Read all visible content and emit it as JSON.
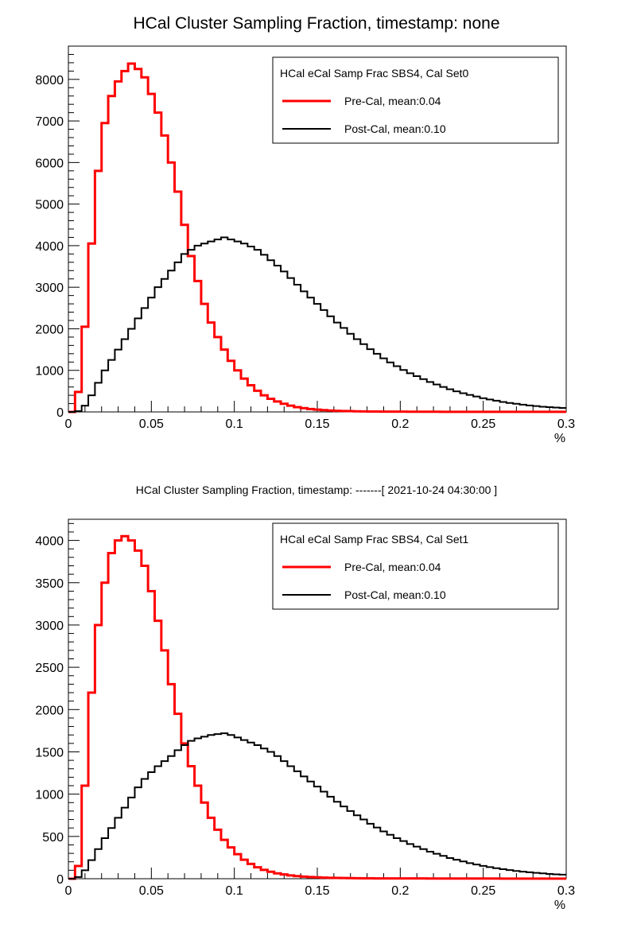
{
  "chart_data": [
    {
      "type": "histogram",
      "title": "HCal Cluster Sampling Fraction, timestamp: none",
      "xlabel": "%",
      "ylabel": "",
      "xlim": [
        0,
        0.3
      ],
      "ylim": [
        0,
        8800
      ],
      "x_ticks": [
        0,
        0.05,
        0.1,
        0.15,
        0.2,
        0.25,
        0.3
      ],
      "x_tick_labels": [
        "0",
        "0.05",
        "0.1",
        "0.15",
        "0.2",
        "0.25",
        "0.3"
      ],
      "y_ticks": [
        0,
        1000,
        2000,
        3000,
        4000,
        5000,
        6000,
        7000,
        8000
      ],
      "y_tick_labels": [
        "0",
        "1000",
        "2000",
        "3000",
        "4000",
        "5000",
        "6000",
        "7000",
        "8000"
      ],
      "grid": false,
      "legend_position": "top-right",
      "legend_header": "HCal eCal Samp Frac SBS4, Cal Set0",
      "series": [
        {
          "name": "Pre-Cal, mean:0.04",
          "color": "#ff0000",
          "x_centers": [
            0.002,
            0.006,
            0.01,
            0.014,
            0.018,
            0.022,
            0.026,
            0.03,
            0.034,
            0.038,
            0.042,
            0.046,
            0.05,
            0.054,
            0.058,
            0.062,
            0.066,
            0.07,
            0.074,
            0.078,
            0.082,
            0.086,
            0.09,
            0.094,
            0.098,
            0.102,
            0.106,
            0.11,
            0.114,
            0.118,
            0.122,
            0.126,
            0.13,
            0.134,
            0.138,
            0.142,
            0.146,
            0.15,
            0.154,
            0.158,
            0.162,
            0.166,
            0.17,
            0.174,
            0.178,
            0.182,
            0.186,
            0.19,
            0.194,
            0.198,
            0.202,
            0.206,
            0.21,
            0.214,
            0.218,
            0.222,
            0.226,
            0.23,
            0.234,
            0.238,
            0.242,
            0.246,
            0.25,
            0.254,
            0.258,
            0.262,
            0.266,
            0.27,
            0.274,
            0.278,
            0.282,
            0.286,
            0.29,
            0.294,
            0.298
          ],
          "values": [
            0,
            480,
            2050,
            4050,
            5800,
            6950,
            7600,
            7950,
            8200,
            8380,
            8250,
            8050,
            7650,
            7200,
            6650,
            6000,
            5300,
            4500,
            3750,
            3150,
            2600,
            2150,
            1800,
            1500,
            1230,
            1000,
            800,
            640,
            510,
            400,
            315,
            250,
            195,
            150,
            115,
            90,
            70,
            55,
            42,
            34,
            27,
            22,
            18,
            15,
            12,
            10,
            9,
            8,
            7,
            6,
            6,
            5,
            5,
            4,
            4,
            4,
            3,
            3,
            3,
            3,
            3,
            2,
            2,
            2,
            2,
            2,
            2,
            2,
            2,
            2,
            2,
            2,
            2,
            2,
            2
          ]
        },
        {
          "name": "Post-Cal, mean:0.10",
          "color": "#000000",
          "x_centers": [
            0.002,
            0.006,
            0.01,
            0.014,
            0.018,
            0.022,
            0.026,
            0.03,
            0.034,
            0.038,
            0.042,
            0.046,
            0.05,
            0.054,
            0.058,
            0.062,
            0.066,
            0.07,
            0.074,
            0.078,
            0.082,
            0.086,
            0.09,
            0.094,
            0.098,
            0.102,
            0.106,
            0.11,
            0.114,
            0.118,
            0.122,
            0.126,
            0.13,
            0.134,
            0.138,
            0.142,
            0.146,
            0.15,
            0.154,
            0.158,
            0.162,
            0.166,
            0.17,
            0.174,
            0.178,
            0.182,
            0.186,
            0.19,
            0.194,
            0.198,
            0.202,
            0.206,
            0.21,
            0.214,
            0.218,
            0.222,
            0.226,
            0.23,
            0.234,
            0.238,
            0.242,
            0.246,
            0.25,
            0.254,
            0.258,
            0.262,
            0.266,
            0.27,
            0.274,
            0.278,
            0.282,
            0.286,
            0.29,
            0.294,
            0.298
          ],
          "values": [
            0,
            20,
            150,
            400,
            700,
            1000,
            1250,
            1500,
            1750,
            2000,
            2250,
            2500,
            2750,
            3000,
            3200,
            3400,
            3600,
            3800,
            3900,
            4000,
            4050,
            4100,
            4150,
            4200,
            4150,
            4100,
            4050,
            3980,
            3900,
            3780,
            3650,
            3520,
            3380,
            3220,
            3060,
            2900,
            2750,
            2600,
            2450,
            2300,
            2150,
            2020,
            1880,
            1750,
            1630,
            1510,
            1400,
            1290,
            1190,
            1100,
            1010,
            930,
            860,
            790,
            720,
            660,
            600,
            545,
            495,
            450,
            410,
            370,
            330,
            300,
            270,
            240,
            215,
            195,
            175,
            155,
            140,
            125,
            115,
            105,
            95
          ]
        }
      ]
    },
    {
      "type": "histogram",
      "title": "HCal Cluster Sampling Fraction, timestamp: -------[ 2021-10-24 04:30:00 ]",
      "xlabel": "%",
      "ylabel": "",
      "xlim": [
        0,
        0.3
      ],
      "ylim": [
        0,
        4250
      ],
      "x_ticks": [
        0,
        0.05,
        0.1,
        0.15,
        0.2,
        0.25,
        0.3
      ],
      "x_tick_labels": [
        "0",
        "0.05",
        "0.1",
        "0.15",
        "0.2",
        "0.25",
        "0.3"
      ],
      "y_ticks": [
        0,
        500,
        1000,
        1500,
        2000,
        2500,
        3000,
        3500,
        4000
      ],
      "y_tick_labels": [
        "0",
        "500",
        "1000",
        "1500",
        "2000",
        "2500",
        "3000",
        "3500",
        "4000"
      ],
      "grid": false,
      "legend_position": "top-right",
      "legend_header": "HCal eCal Samp Frac SBS4, Cal Set1",
      "series": [
        {
          "name": "Pre-Cal, mean:0.04",
          "color": "#ff0000",
          "x_centers": [
            0.002,
            0.006,
            0.01,
            0.014,
            0.018,
            0.022,
            0.026,
            0.03,
            0.034,
            0.038,
            0.042,
            0.046,
            0.05,
            0.054,
            0.058,
            0.062,
            0.066,
            0.07,
            0.074,
            0.078,
            0.082,
            0.086,
            0.09,
            0.094,
            0.098,
            0.102,
            0.106,
            0.11,
            0.114,
            0.118,
            0.122,
            0.126,
            0.13,
            0.134,
            0.138,
            0.142,
            0.146,
            0.15,
            0.154,
            0.158,
            0.162,
            0.166,
            0.17,
            0.174,
            0.178,
            0.182,
            0.186,
            0.19,
            0.194,
            0.198,
            0.202,
            0.206,
            0.21,
            0.214,
            0.218,
            0.222,
            0.226,
            0.23,
            0.234,
            0.238,
            0.242,
            0.246,
            0.25,
            0.254,
            0.258,
            0.262,
            0.266,
            0.27,
            0.274,
            0.278,
            0.282,
            0.286,
            0.29,
            0.294,
            0.298
          ],
          "values": [
            0,
            150,
            1100,
            2200,
            3000,
            3500,
            3850,
            4000,
            4050,
            4000,
            3880,
            3700,
            3400,
            3050,
            2700,
            2300,
            1950,
            1600,
            1330,
            1100,
            900,
            720,
            580,
            460,
            370,
            290,
            225,
            175,
            135,
            105,
            82,
            64,
            50,
            39,
            31,
            25,
            20,
            16,
            13,
            11,
            9,
            8,
            7,
            6,
            5,
            5,
            4,
            4,
            4,
            3,
            3,
            3,
            3,
            3,
            2,
            2,
            2,
            2,
            2,
            2,
            2,
            2,
            2,
            2,
            2,
            1,
            1,
            1,
            1,
            1,
            1,
            1,
            1,
            1,
            1
          ]
        },
        {
          "name": "Post-Cal, mean:0.10",
          "color": "#000000",
          "x_centers": [
            0.002,
            0.006,
            0.01,
            0.014,
            0.018,
            0.022,
            0.026,
            0.03,
            0.034,
            0.038,
            0.042,
            0.046,
            0.05,
            0.054,
            0.058,
            0.062,
            0.066,
            0.07,
            0.074,
            0.078,
            0.082,
            0.086,
            0.09,
            0.094,
            0.098,
            0.102,
            0.106,
            0.11,
            0.114,
            0.118,
            0.122,
            0.126,
            0.13,
            0.134,
            0.138,
            0.142,
            0.146,
            0.15,
            0.154,
            0.158,
            0.162,
            0.166,
            0.17,
            0.174,
            0.178,
            0.182,
            0.186,
            0.19,
            0.194,
            0.198,
            0.202,
            0.206,
            0.21,
            0.214,
            0.218,
            0.222,
            0.226,
            0.23,
            0.234,
            0.238,
            0.242,
            0.246,
            0.25,
            0.254,
            0.258,
            0.262,
            0.266,
            0.27,
            0.274,
            0.278,
            0.282,
            0.286,
            0.29,
            0.294,
            0.298
          ],
          "values": [
            0,
            20,
            100,
            220,
            350,
            480,
            600,
            720,
            840,
            960,
            1080,
            1180,
            1260,
            1330,
            1390,
            1450,
            1520,
            1580,
            1630,
            1660,
            1680,
            1700,
            1710,
            1720,
            1700,
            1670,
            1640,
            1610,
            1580,
            1540,
            1500,
            1450,
            1390,
            1330,
            1270,
            1210,
            1150,
            1090,
            1030,
            970,
            910,
            855,
            800,
            750,
            700,
            650,
            605,
            560,
            520,
            480,
            445,
            410,
            380,
            350,
            320,
            295,
            270,
            245,
            225,
            205,
            185,
            168,
            152,
            138,
            125,
            113,
            102,
            92,
            84,
            76,
            69,
            63,
            57,
            52,
            48
          ]
        }
      ]
    }
  ]
}
